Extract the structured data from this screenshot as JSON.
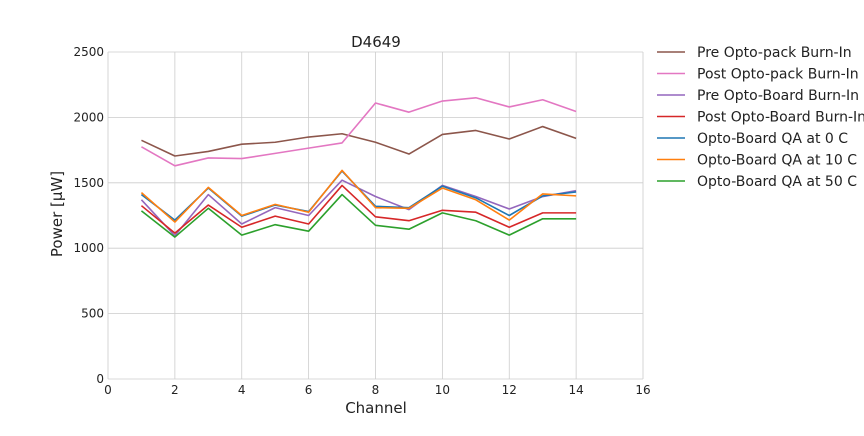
{
  "chart_data": {
    "type": "line",
    "title": "D4649",
    "xlabel": "Channel",
    "ylabel": "Power [μW]",
    "xlim": [
      0,
      16
    ],
    "ylim": [
      0,
      2500
    ],
    "xticks": [
      0,
      2,
      4,
      6,
      8,
      10,
      12,
      14,
      16
    ],
    "yticks": [
      0,
      500,
      1000,
      1500,
      2000,
      2500
    ],
    "grid": true,
    "legend_position": "outside right",
    "x": [
      1,
      2,
      3,
      4,
      5,
      6,
      7,
      8,
      9,
      10,
      11,
      12,
      13,
      14
    ],
    "series": [
      {
        "name": "Pre Opto-pack Burn-In",
        "color": "#8c564b",
        "values": [
          1825,
          1705,
          1740,
          1795,
          1810,
          1850,
          1875,
          1810,
          1720,
          1870,
          1900,
          1835,
          1930,
          1840
        ]
      },
      {
        "name": "Post Opto-pack Burn-In",
        "color": "#e377c2",
        "values": [
          1775,
          1630,
          1690,
          1685,
          1725,
          1765,
          1805,
          2110,
          2040,
          2125,
          2150,
          2080,
          2135,
          2045
        ]
      },
      {
        "name": "Pre Opto-Board Burn-In",
        "color": "#9467bd",
        "values": [
          1370,
          1095,
          1410,
          1185,
          1310,
          1250,
          1520,
          1395,
          1295,
          1480,
          1395,
          1300,
          1395,
          1440
        ]
      },
      {
        "name": "Post Opto-Board Burn-In",
        "color": "#d62728",
        "values": [
          1325,
          1115,
          1330,
          1160,
          1245,
          1185,
          1480,
          1240,
          1210,
          1290,
          1275,
          1160,
          1270,
          1270
        ]
      },
      {
        "name": "Opto-Board QA at 0 C",
        "color": "#1f77b4",
        "values": [
          1410,
          1215,
          1460,
          1245,
          1330,
          1280,
          1590,
          1320,
          1310,
          1475,
          1385,
          1250,
          1400,
          1430
        ]
      },
      {
        "name": "Opto-Board QA at 10 C",
        "color": "#ff7f0e",
        "values": [
          1425,
          1200,
          1465,
          1250,
          1335,
          1275,
          1595,
          1310,
          1305,
          1460,
          1370,
          1215,
          1415,
          1400
        ]
      },
      {
        "name": "Opto-Board QA at 50 C",
        "color": "#2ca02c",
        "values": [
          1285,
          1085,
          1305,
          1100,
          1180,
          1130,
          1410,
          1175,
          1145,
          1270,
          1210,
          1100,
          1225,
          1225
        ]
      }
    ]
  }
}
